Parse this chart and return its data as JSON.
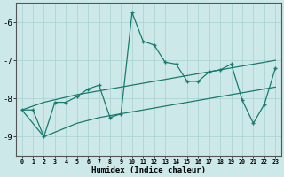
{
  "title": "",
  "xlabel": "Humidex (Indice chaleur)",
  "background_color": "#cce8e8",
  "line_color": "#1a7a6e",
  "xlim": [
    -0.5,
    23.5
  ],
  "ylim": [
    -9.5,
    -5.5
  ],
  "yticks": [
    -9,
    -8,
    -7,
    -6
  ],
  "xticks": [
    0,
    1,
    2,
    3,
    4,
    5,
    6,
    7,
    8,
    9,
    10,
    11,
    12,
    13,
    14,
    15,
    16,
    17,
    18,
    19,
    20,
    21,
    22,
    23
  ],
  "main_x": [
    0,
    1,
    2,
    3,
    4,
    5,
    6,
    7,
    8,
    9,
    10,
    11,
    12,
    13,
    14,
    15,
    16,
    17,
    18,
    19,
    20,
    21,
    22,
    23
  ],
  "main_y": [
    -8.3,
    -8.3,
    -9.0,
    -8.1,
    -8.1,
    -7.95,
    -7.75,
    -7.65,
    -8.5,
    -8.4,
    -5.75,
    -6.5,
    -6.6,
    -7.05,
    -7.1,
    -7.55,
    -7.55,
    -7.3,
    -7.25,
    -7.1,
    -8.05,
    -8.65,
    -8.15,
    -7.2
  ],
  "upper_x": [
    0,
    2,
    5,
    7,
    10,
    13,
    15,
    17,
    19,
    20,
    21,
    22,
    23
  ],
  "upper_y": [
    -8.3,
    -8.1,
    -7.9,
    -7.8,
    -7.65,
    -7.5,
    -7.4,
    -7.3,
    -7.2,
    -7.15,
    -7.1,
    -7.05,
    -7.0
  ],
  "lower_x": [
    0,
    2,
    5,
    7,
    10,
    13,
    15,
    17,
    19,
    20,
    21,
    22,
    23
  ],
  "lower_y": [
    -8.3,
    -9.0,
    -8.65,
    -8.5,
    -8.35,
    -8.2,
    -8.1,
    -8.0,
    -7.9,
    -7.85,
    -7.8,
    -7.75,
    -7.7
  ]
}
